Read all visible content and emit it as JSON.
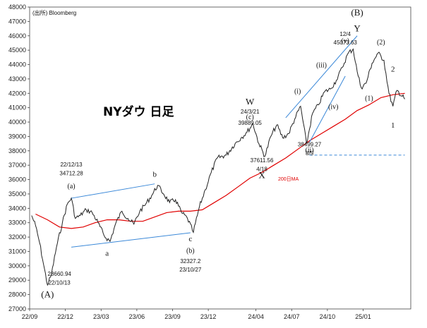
{
  "chart_data": {
    "type": "line",
    "title": "NYダウ 日足",
    "source": "(出所) Bloomberg",
    "ylim": [
      27000,
      48000
    ],
    "y_ticks": [
      27000,
      28000,
      29000,
      30000,
      31000,
      32000,
      33000,
      34000,
      35000,
      36000,
      37000,
      38000,
      39000,
      40000,
      41000,
      42000,
      43000,
      44000,
      45000,
      46000,
      47000,
      48000
    ],
    "x_ticks": [
      "22/09",
      "22/12",
      "23/03",
      "23/06",
      "23/09",
      "23/12",
      "24/04",
      "24/07",
      "24/10",
      "25/01"
    ],
    "grid": false,
    "series": [
      {
        "name": "",
        "color": "#222222",
        "points": [
          [
            "22/09",
            33500
          ],
          [
            "22/09",
            32800
          ],
          [
            "22/09",
            31600
          ],
          [
            "22/10",
            30100
          ],
          [
            "22/10",
            28660.94
          ],
          [
            "22/10",
            29400
          ],
          [
            "22/11",
            31300
          ],
          [
            "22/11",
            33000
          ],
          [
            "22/12",
            34300
          ],
          [
            "22/12",
            34712.28
          ],
          [
            "22/12",
            33300
          ],
          [
            "23/01",
            33500
          ],
          [
            "23/01",
            33900
          ],
          [
            "23/02",
            33700
          ],
          [
            "23/02",
            33000
          ],
          [
            "23/03",
            32100
          ],
          [
            "23/03",
            31700
          ],
          [
            "23/04",
            33000
          ],
          [
            "23/04",
            33800
          ],
          [
            "23/05",
            33300
          ],
          [
            "23/05",
            32900
          ],
          [
            "23/06",
            33800
          ],
          [
            "23/06",
            34300
          ],
          [
            "23/07",
            34900
          ],
          [
            "23/07",
            35600
          ],
          [
            "23/08",
            35000
          ],
          [
            "23/08",
            34400
          ],
          [
            "23/09",
            34600
          ],
          [
            "23/09",
            33700
          ],
          [
            "23/10",
            33300
          ],
          [
            "23/10",
            32327.2
          ],
          [
            "23/11",
            34100
          ],
          [
            "23/11",
            35300
          ],
          [
            "23/12",
            36500
          ],
          [
            "23/12",
            37500
          ],
          [
            "24/01",
            37700
          ],
          [
            "24/02",
            38500
          ],
          [
            "24/02",
            38900
          ],
          [
            "24/03",
            39300
          ],
          [
            "24/03",
            39889.05
          ],
          [
            "24/04",
            38500
          ],
          [
            "24/04",
            37611.56
          ],
          [
            "24/05",
            39000
          ],
          [
            "24/05",
            39800
          ],
          [
            "24/06",
            38900
          ],
          [
            "24/06",
            39200
          ],
          [
            "24/07",
            40200
          ],
          [
            "24/07",
            41100
          ],
          [
            "24/08",
            38499.27
          ],
          [
            "24/08",
            40600
          ],
          [
            "24/09",
            41200
          ],
          [
            "24/09",
            42100
          ],
          [
            "24/10",
            42300
          ],
          [
            "24/10",
            42900
          ],
          [
            "24/11",
            43800
          ],
          [
            "24/11",
            44800
          ],
          [
            "24/12",
            45073.63
          ],
          [
            "24/12",
            43500
          ],
          [
            "24/12",
            42400
          ],
          [
            "25/01",
            42700
          ],
          [
            "25/01",
            44100
          ],
          [
            "25/02",
            44800
          ],
          [
            "25/02",
            44300
          ],
          [
            "25/03",
            42000
          ],
          [
            "25/03",
            41100
          ],
          [
            "25/03",
            42200
          ],
          [
            "25/04",
            41600
          ]
        ]
      },
      {
        "name": "200日MA",
        "color": "#e00000",
        "points": [
          [
            "22/09",
            33600
          ],
          [
            "22/10",
            33200
          ],
          [
            "22/11",
            32700
          ],
          [
            "22/12",
            32600
          ],
          [
            "23/01",
            32700
          ],
          [
            "23/02",
            33000
          ],
          [
            "23/03",
            33200
          ],
          [
            "23/04",
            33200
          ],
          [
            "23/05",
            33100
          ],
          [
            "23/06",
            33100
          ],
          [
            "23/07",
            33400
          ],
          [
            "23/08",
            33700
          ],
          [
            "23/09",
            33800
          ],
          [
            "23/10",
            33800
          ],
          [
            "23/11",
            33900
          ],
          [
            "23/12",
            34400
          ],
          [
            "24/01",
            34900
          ],
          [
            "24/02",
            35500
          ],
          [
            "24/03",
            36100
          ],
          [
            "24/04",
            36500
          ],
          [
            "24/05",
            37000
          ],
          [
            "24/06",
            37500
          ],
          [
            "24/07",
            38100
          ],
          [
            "24/08",
            38700
          ],
          [
            "24/09",
            39200
          ],
          [
            "24/10",
            39700
          ],
          [
            "24/11",
            40200
          ],
          [
            "24/12",
            40800
          ],
          [
            "25/01",
            41200
          ],
          [
            "25/02",
            41700
          ],
          [
            "25/03",
            41900
          ],
          [
            "25/04",
            42000
          ]
        ]
      }
    ],
    "trendlines": [
      {
        "color": "#3a88d8",
        "from": [
          "22/12",
          34700
        ],
        "to": [
          "23/07",
          35700
        ]
      },
      {
        "color": "#3a88d8",
        "from": [
          "22/12",
          31300
        ],
        "to": [
          "23/10",
          32300
        ]
      },
      {
        "color": "#3a88d8",
        "from": [
          "24/06",
          40300
        ],
        "to": [
          "24/12",
          46000
        ]
      },
      {
        "color": "#3a88d8",
        "from": [
          "24/08",
          38600
        ],
        "to": [
          "24/11",
          43200
        ]
      },
      {
        "color": "#3a88d8",
        "from": [
          "24/08",
          37700
        ],
        "to": [
          "25/04",
          37700
        ],
        "dashed": true
      }
    ],
    "annotations": [
      {
        "text": "(A)",
        "x": "22/10",
        "y": 27800,
        "size": 13
      },
      {
        "text": "28660.94",
        "x": "22/11",
        "y": 29300,
        "size": 8
      },
      {
        "text": "22/10/13",
        "x": "22/11",
        "y": 28700,
        "size": 8
      },
      {
        "text": "22/12/13",
        "x": "22/12",
        "y": 36900,
        "size": 8
      },
      {
        "text": "34712.28",
        "x": "22/12",
        "y": 36300,
        "size": 8
      },
      {
        "text": "(a)",
        "x": "22/12",
        "y": 35400,
        "size": 10
      },
      {
        "text": "a",
        "x": "23/03",
        "y": 30700,
        "size": 11
      },
      {
        "text": "b",
        "x": "23/07",
        "y": 36200,
        "size": 11
      },
      {
        "text": "c",
        "x": "23/10",
        "y": 31700,
        "size": 11
      },
      {
        "text": "(b)",
        "x": "23/10",
        "y": 30900,
        "size": 10
      },
      {
        "text": "32327.2",
        "x": "23/10",
        "y": 30200,
        "size": 8
      },
      {
        "text": "23/10/27",
        "x": "23/10",
        "y": 29600,
        "size": 8
      },
      {
        "text": "W",
        "x": "24/03",
        "y": 41200,
        "size": 13
      },
      {
        "text": "24/3/21",
        "x": "24/03",
        "y": 40600,
        "size": 8
      },
      {
        "text": "(c)",
        "x": "24/03",
        "y": 40200,
        "size": 10
      },
      {
        "text": "39889.05",
        "x": "24/03",
        "y": 39800,
        "size": 8
      },
      {
        "text": "37611.56",
        "x": "24/04",
        "y": 37200,
        "size": 8
      },
      {
        "text": "4/18",
        "x": "24/04",
        "y": 36600,
        "size": 8
      },
      {
        "text": "X",
        "x": "24/04",
        "y": 36100,
        "size": 13
      },
      {
        "text": "(i)",
        "x": "24/07",
        "y": 42000,
        "size": 10
      },
      {
        "text": "(ii)",
        "x": "24/08",
        "y": 37900,
        "size": 10
      },
      {
        "text": "38499.27",
        "x": "24/08",
        "y": 38300,
        "size": 8
      },
      {
        "text": "8/5",
        "x": "24/08",
        "y": 37700,
        "size": 8
      },
      {
        "text": "(iii)",
        "x": "24/09",
        "y": 43800,
        "size": 10
      },
      {
        "text": "(iv)",
        "x": "24/10",
        "y": 40900,
        "size": 10
      },
      {
        "text": "(v)",
        "x": "24/11",
        "y": 45500,
        "size": 10
      },
      {
        "text": "12/4",
        "x": "24/11",
        "y": 46000,
        "size": 8
      },
      {
        "text": "45073.63",
        "x": "24/11",
        "y": 45400,
        "size": 8
      },
      {
        "text": "Y",
        "x": "24/12",
        "y": 46300,
        "size": 13
      },
      {
        "text": "(B)",
        "x": "24/12",
        "y": 47400,
        "size": 13
      },
      {
        "text": "(1)",
        "x": "25/01",
        "y": 41500,
        "size": 10
      },
      {
        "text": "(2)",
        "x": "25/02",
        "y": 45400,
        "size": 10
      },
      {
        "text": "1",
        "x": "25/03",
        "y": 39600,
        "size": 11
      },
      {
        "text": "2",
        "x": "25/03",
        "y": 43500,
        "size": 11
      }
    ]
  }
}
